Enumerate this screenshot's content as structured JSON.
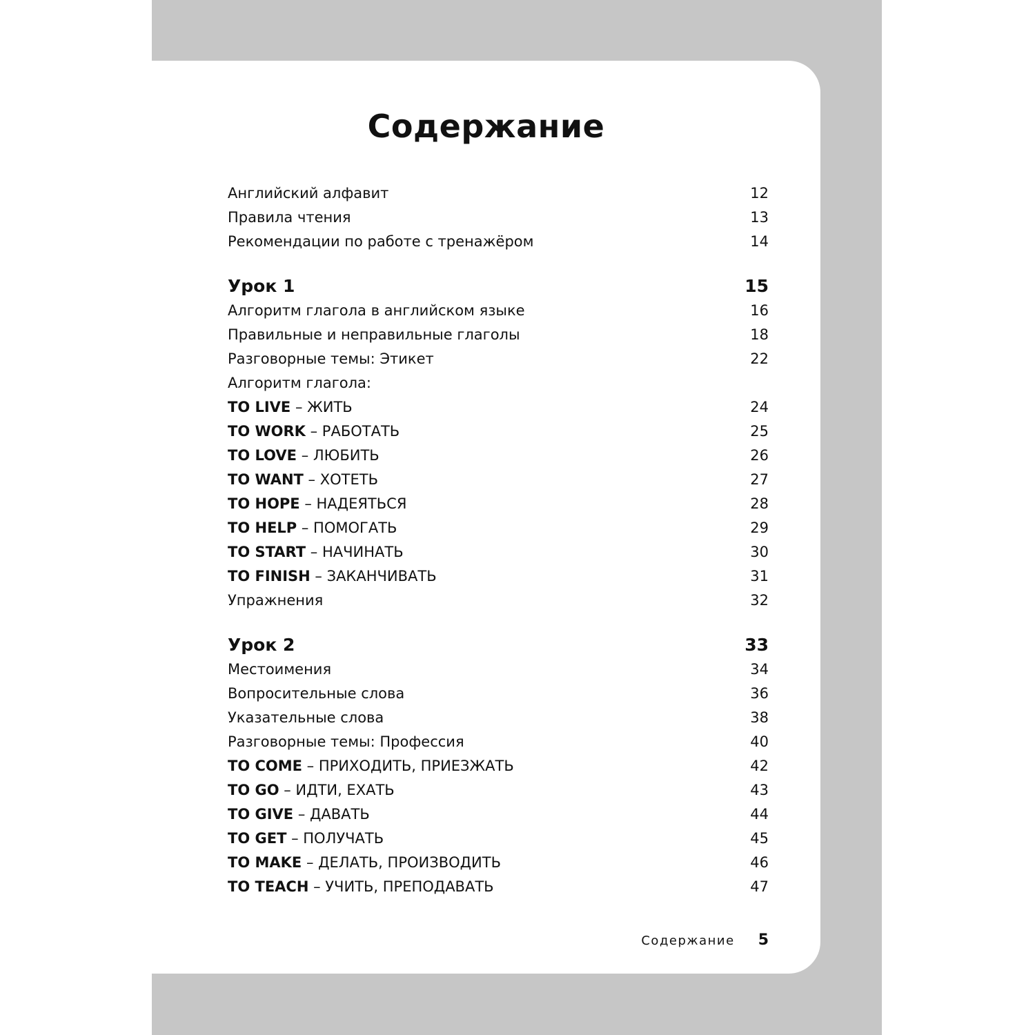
{
  "title": "Содержание",
  "intro": [
    {
      "bold": "",
      "text": "Английский алфавит",
      "page": "12"
    },
    {
      "bold": "",
      "text": "Правила чтения",
      "page": "13"
    },
    {
      "bold": "",
      "text": "Рекомендации по работе с тренажёром",
      "page": "14"
    }
  ],
  "lessons": [
    {
      "title": "Урок 1",
      "page": "15",
      "items": [
        {
          "bold": "",
          "text": "Алгоритм глагола в английском языке",
          "page": "16"
        },
        {
          "bold": "",
          "text": "Правильные и неправильные глаголы",
          "page": "18"
        },
        {
          "bold": "",
          "text": "Разговорные темы: Этикет",
          "page": "22"
        },
        {
          "bold": "",
          "text": "Алгоритм глагола:",
          "page": ""
        },
        {
          "bold": "TO LIVE",
          "text": " – ЖИТЬ",
          "page": "24"
        },
        {
          "bold": "TO WORK",
          "text": " – РАБОТАТЬ",
          "page": "25"
        },
        {
          "bold": "TO LOVE",
          "text": " – ЛЮБИТЬ",
          "page": "26"
        },
        {
          "bold": "TO WANT",
          "text": " – ХОТЕТЬ",
          "page": "27"
        },
        {
          "bold": "TO HOPE",
          "text": " – НАДЕЯТЬСЯ",
          "page": "28"
        },
        {
          "bold": "TO HELP",
          "text": " – ПОМОГАТЬ",
          "page": "29"
        },
        {
          "bold": "TO START",
          "text": " – НАЧИНАТЬ",
          "page": "30"
        },
        {
          "bold": "TO FINISH",
          "text": " – ЗАКАНЧИВАТЬ",
          "page": "31"
        },
        {
          "bold": "",
          "text": "Упражнения",
          "page": "32"
        }
      ]
    },
    {
      "title": "Урок 2",
      "page": "33",
      "items": [
        {
          "bold": "",
          "text": "Местоимения",
          "page": "34"
        },
        {
          "bold": "",
          "text": "Вопросительные слова",
          "page": "36"
        },
        {
          "bold": "",
          "text": "Указательные слова",
          "page": "38"
        },
        {
          "bold": "",
          "text": "Разговорные темы: Профессия",
          "page": "40"
        },
        {
          "bold": "TO COME",
          "text": " – ПРИХОДИТЬ, ПРИЕЗЖАТЬ",
          "page": "42"
        },
        {
          "bold": "TO GO",
          "text": " – ИДТИ, ЕХАТЬ",
          "page": "43"
        },
        {
          "bold": "TO GIVE",
          "text": " – ДАВАТЬ",
          "page": "44"
        },
        {
          "bold": "TO GET",
          "text": " – ПОЛУЧАТЬ",
          "page": "45"
        },
        {
          "bold": "TO MAKE",
          "text": " – ДЕЛАТЬ, ПРОИЗВОДИТЬ",
          "page": "46"
        },
        {
          "bold": "TO TEACH",
          "text": " – УЧИТЬ, ПРЕПОДАВАТЬ",
          "page": "47"
        }
      ]
    }
  ],
  "footer": {
    "section": "Содержание",
    "page": "5"
  }
}
